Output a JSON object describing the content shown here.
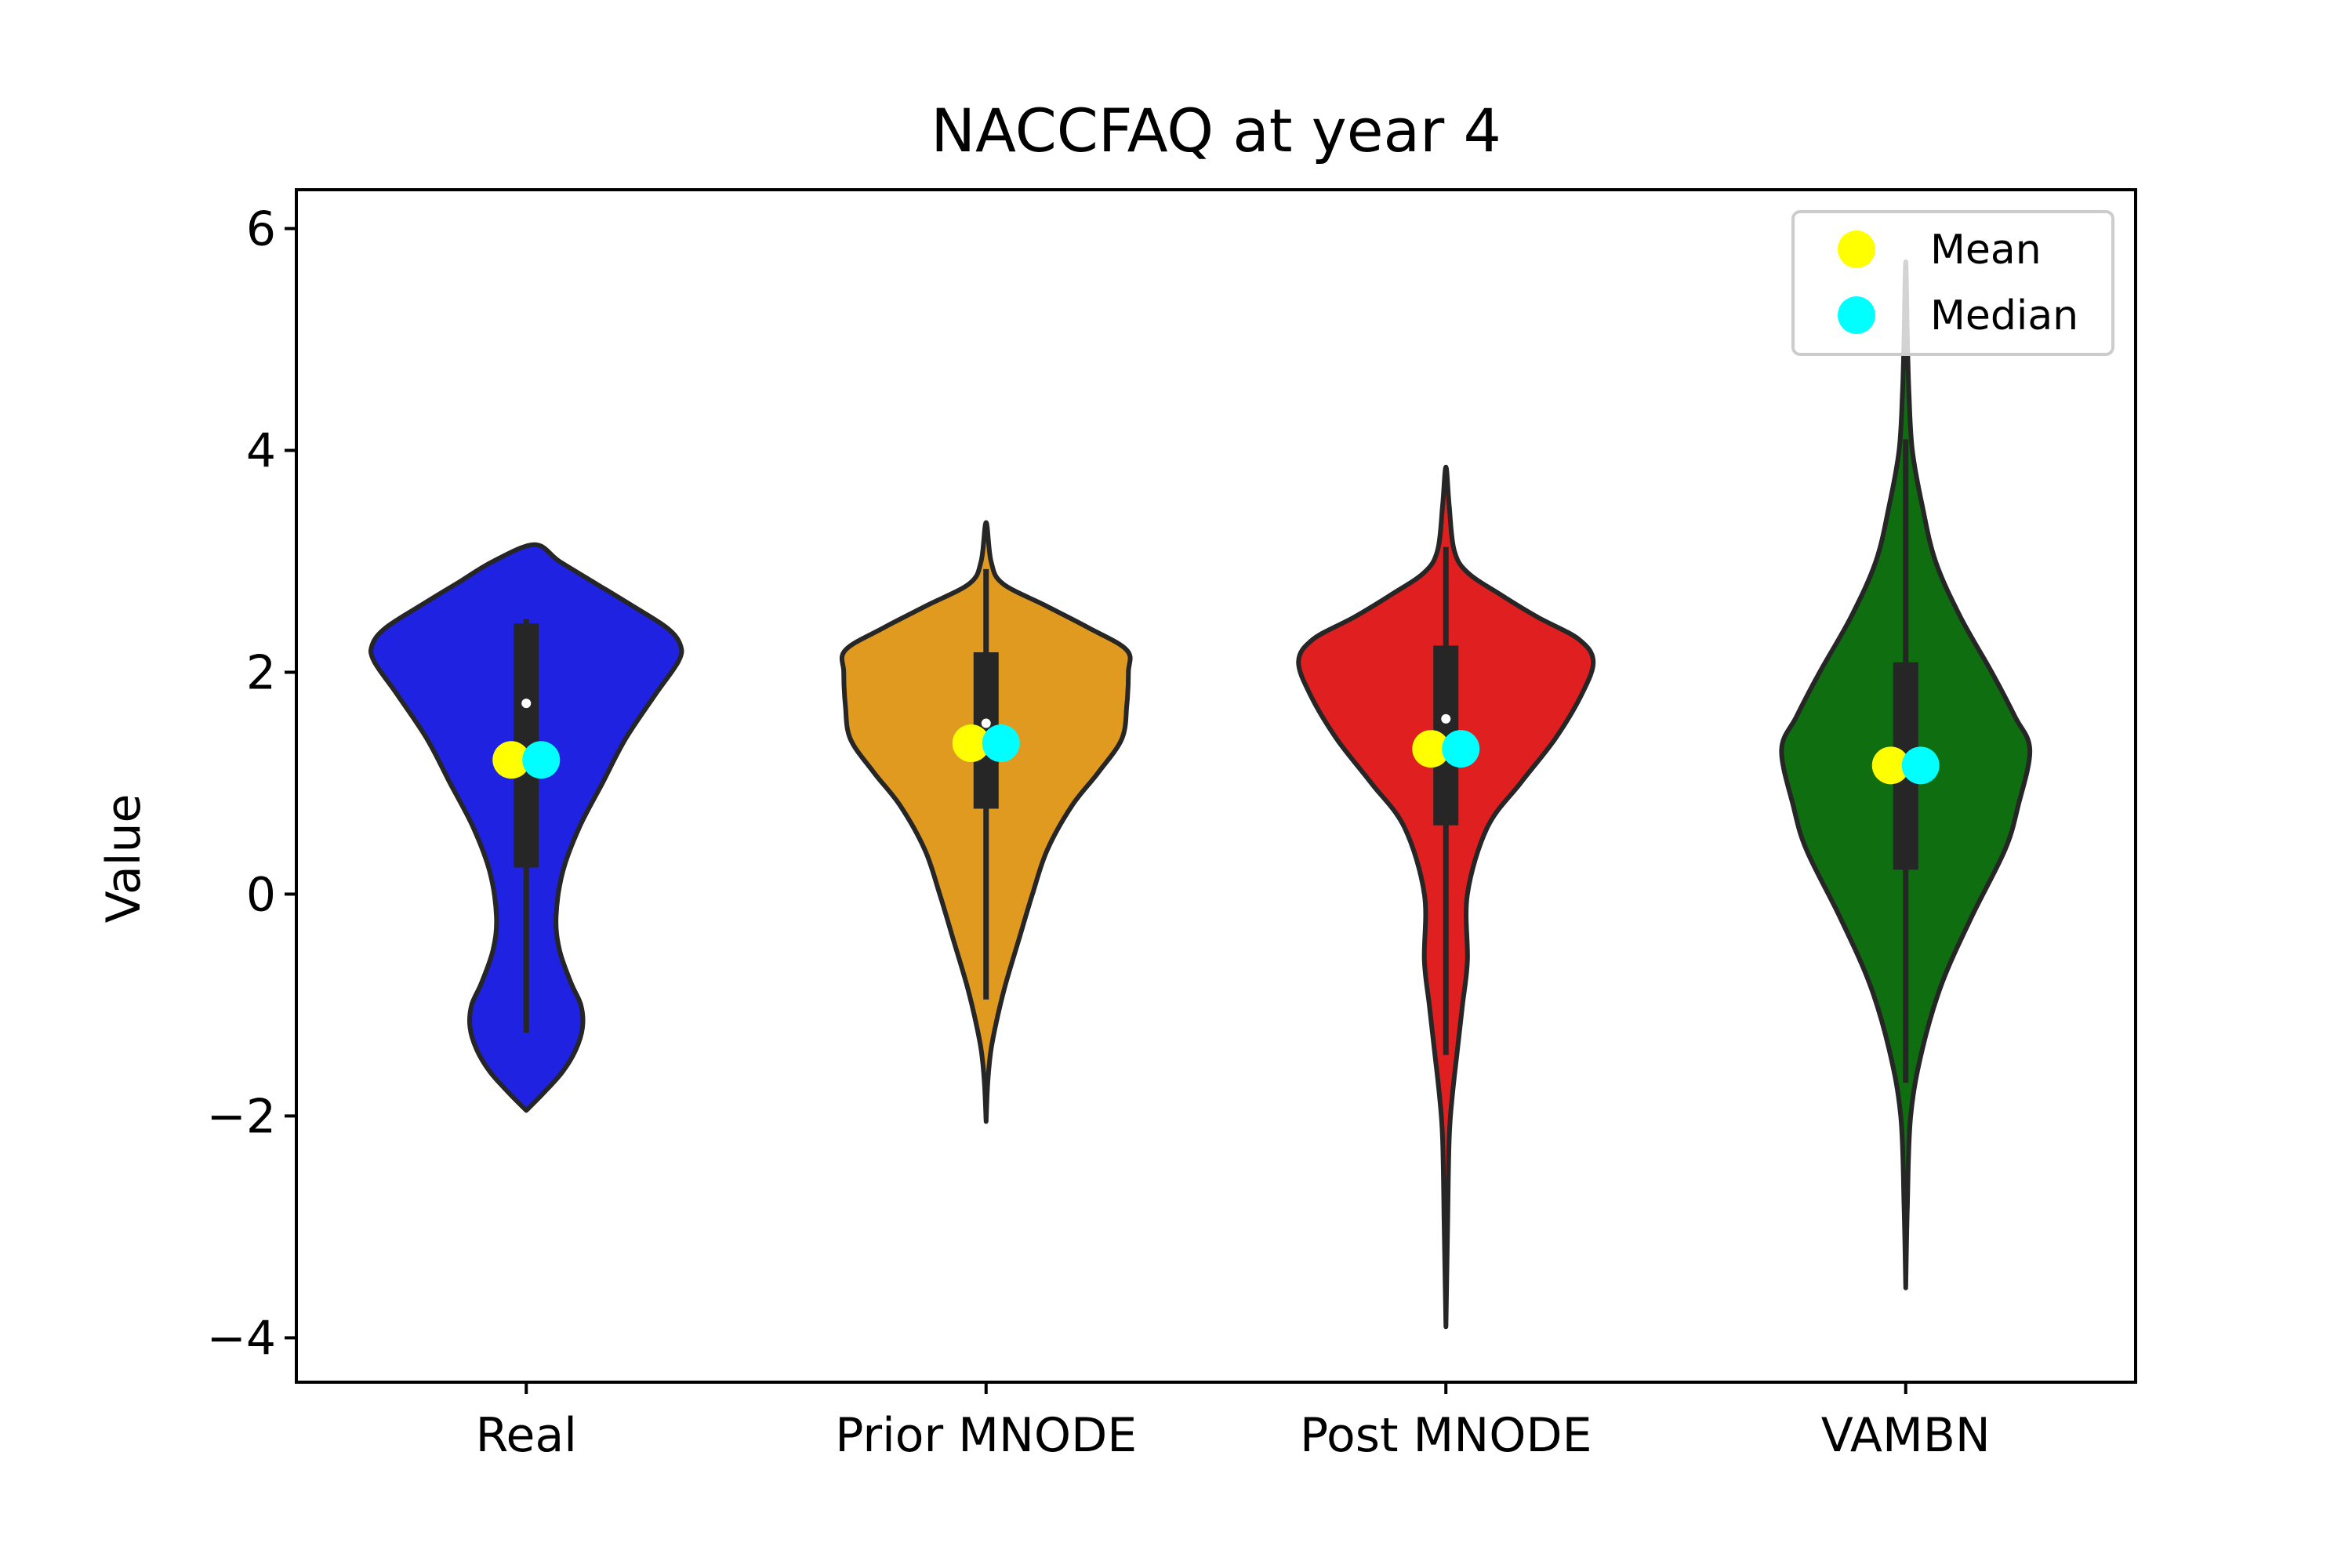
{
  "chart_data": {
    "type": "violin",
    "title": "NACCFAQ at year 4",
    "xlabel": "",
    "ylabel": "Value",
    "ylim": [
      -4.4,
      6.35
    ],
    "yticks": [
      -4,
      -2,
      0,
      2,
      4,
      6
    ],
    "ytick_labels": [
      "−4",
      "−2",
      "0",
      "2",
      "4",
      "6"
    ],
    "grid": false,
    "legend": {
      "placement": "top-right",
      "entries": [
        {
          "label": "Mean",
          "color": "#ffff00"
        },
        {
          "label": "Median",
          "color": "#00ffff"
        }
      ]
    },
    "categories": [
      "Real",
      "Prior MNODE",
      "Post MNODE",
      "VAMBN"
    ],
    "series": [
      {
        "category": "Real",
        "color": "#1f22e0",
        "mean": 1.21,
        "median": 1.21,
        "box_median": 1.72,
        "q1": 0.24,
        "q3": 2.44,
        "whisker_low": -1.25,
        "whisker_high": 2.48,
        "density": [
          [
            -1.95,
            0.0
          ],
          [
            -1.8,
            0.1
          ],
          [
            -1.6,
            0.22
          ],
          [
            -1.4,
            0.3
          ],
          [
            -1.2,
            0.34
          ],
          [
            -1.0,
            0.33
          ],
          [
            -0.8,
            0.27
          ],
          [
            -0.5,
            0.2
          ],
          [
            -0.2,
            0.18
          ],
          [
            0.2,
            0.22
          ],
          [
            0.6,
            0.32
          ],
          [
            1.0,
            0.46
          ],
          [
            1.4,
            0.6
          ],
          [
            1.8,
            0.78
          ],
          [
            2.1,
            0.92
          ],
          [
            2.25,
            0.93
          ],
          [
            2.4,
            0.85
          ],
          [
            2.6,
            0.64
          ],
          [
            2.8,
            0.42
          ],
          [
            3.0,
            0.2
          ],
          [
            3.15,
            0.05
          ]
        ]
      },
      {
        "category": "Prior MNODE",
        "color": "#e09a20",
        "mean": 1.36,
        "median": 1.36,
        "box_median": 1.54,
        "q1": 0.77,
        "q3": 2.18,
        "whisker_low": -0.95,
        "whisker_high": 2.93,
        "density": [
          [
            -2.05,
            0.0
          ],
          [
            -1.7,
            0.01
          ],
          [
            -1.4,
            0.03
          ],
          [
            -1.1,
            0.07
          ],
          [
            -0.8,
            0.12
          ],
          [
            -0.4,
            0.2
          ],
          [
            0.0,
            0.28
          ],
          [
            0.4,
            0.37
          ],
          [
            0.8,
            0.52
          ],
          [
            1.1,
            0.68
          ],
          [
            1.4,
            0.82
          ],
          [
            1.7,
            0.85
          ],
          [
            2.0,
            0.86
          ],
          [
            2.2,
            0.85
          ],
          [
            2.4,
            0.62
          ],
          [
            2.6,
            0.36
          ],
          [
            2.8,
            0.1
          ],
          [
            3.0,
            0.03
          ],
          [
            3.35,
            0.0
          ]
        ]
      },
      {
        "category": "Post MNODE",
        "color": "#e02020",
        "mean": 1.31,
        "median": 1.31,
        "box_median": 1.58,
        "q1": 0.62,
        "q3": 2.24,
        "whisker_low": -1.45,
        "whisker_high": 3.13,
        "density": [
          [
            -3.9,
            0.0
          ],
          [
            -3.0,
            0.01
          ],
          [
            -2.2,
            0.02
          ],
          [
            -1.8,
            0.04
          ],
          [
            -1.4,
            0.07
          ],
          [
            -1.0,
            0.1
          ],
          [
            -0.6,
            0.13
          ],
          [
            0.0,
            0.13
          ],
          [
            0.6,
            0.25
          ],
          [
            1.0,
            0.45
          ],
          [
            1.4,
            0.66
          ],
          [
            1.8,
            0.82
          ],
          [
            2.1,
            0.89
          ],
          [
            2.3,
            0.8
          ],
          [
            2.5,
            0.55
          ],
          [
            2.7,
            0.33
          ],
          [
            2.9,
            0.13
          ],
          [
            3.1,
            0.05
          ],
          [
            3.5,
            0.02
          ],
          [
            3.85,
            0.0
          ]
        ]
      },
      {
        "category": "VAMBN",
        "color": "#0f6e0f",
        "mean": 1.16,
        "median": 1.16,
        "box_median": 1.16,
        "q1": 0.22,
        "q3": 2.09,
        "whisker_low": -1.7,
        "whisker_high": 4.1,
        "density": [
          [
            -3.55,
            0.0
          ],
          [
            -2.8,
            0.01
          ],
          [
            -2.0,
            0.03
          ],
          [
            -1.4,
            0.1
          ],
          [
            -0.8,
            0.22
          ],
          [
            -0.2,
            0.4
          ],
          [
            0.4,
            0.6
          ],
          [
            0.8,
            0.68
          ],
          [
            1.3,
            0.75
          ],
          [
            1.6,
            0.66
          ],
          [
            2.0,
            0.52
          ],
          [
            2.5,
            0.33
          ],
          [
            3.0,
            0.18
          ],
          [
            3.5,
            0.1
          ],
          [
            4.0,
            0.04
          ],
          [
            4.5,
            0.02
          ],
          [
            5.0,
            0.01
          ],
          [
            5.7,
            0.0
          ]
        ]
      }
    ]
  }
}
